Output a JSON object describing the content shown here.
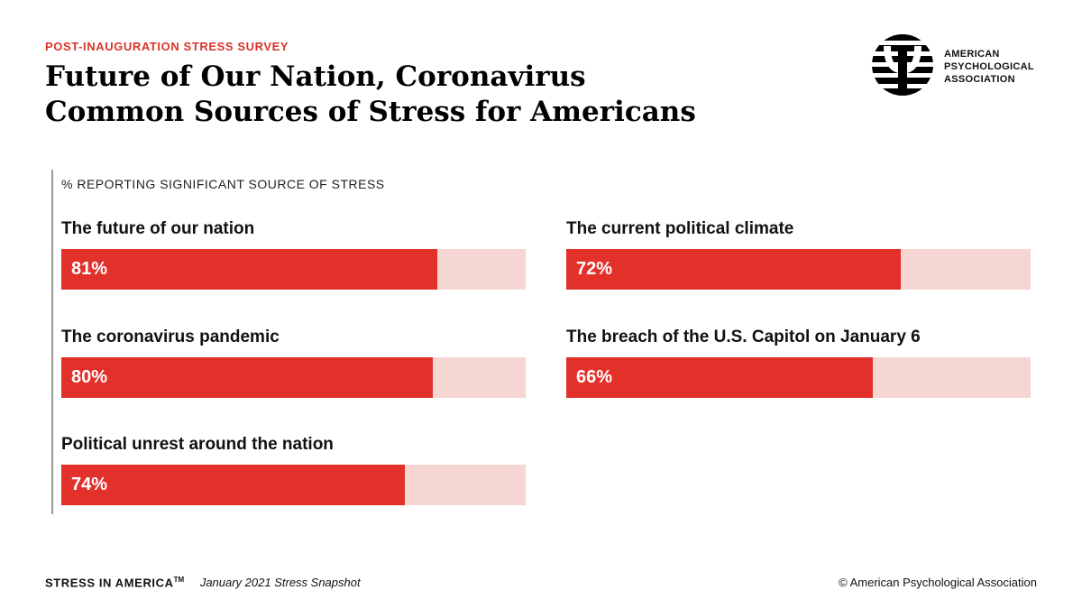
{
  "header": {
    "kicker": "POST-INAUGURATION STRESS SURVEY",
    "title_line1": "Future of Our Nation, Coronavirus",
    "title_line2": "Common Sources of Stress for Americans"
  },
  "logo": {
    "icon": "psi-logo-icon",
    "line1": "AMERICAN",
    "line2": "PSYCHOLOGICAL",
    "line3": "ASSOCIATION"
  },
  "colors": {
    "accent": "#d9342b",
    "bar_fill": "#e2302a",
    "bar_track": "#f6d6d3",
    "axis": "#9a9a9a"
  },
  "chart_data": {
    "type": "bar",
    "orientation": "horizontal",
    "subtitle": "% REPORTING SIGNIFICANT SOURCE OF STRESS",
    "categories": [
      "The future of our nation",
      "The coronavirus pandemic",
      "Political unrest around the nation",
      "The current political climate",
      "The breach of the U.S. Capitol on January 6"
    ],
    "values": [
      81,
      80,
      74,
      72,
      66
    ],
    "value_labels": [
      "81%",
      "80%",
      "74%",
      "72%",
      "66%"
    ],
    "unit": "%",
    "xlim": [
      0,
      100
    ],
    "grid": false,
    "legend": "none"
  },
  "footer": {
    "brand": "STRESS IN AMERICA",
    "tm": "TM",
    "subtitle": "January 2021 Stress Snapshot",
    "copyright": "© American Psychological Association"
  }
}
